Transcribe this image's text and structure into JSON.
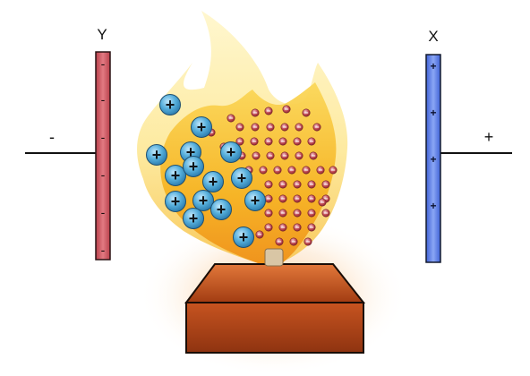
{
  "labels": {
    "plate_y": "Y",
    "plate_x": "X",
    "terminal_y": "-",
    "terminal_x": "+"
  },
  "symbols": {
    "positive_ion": "+",
    "plate_y_mark": "-",
    "plate_x_mark": "+"
  },
  "colors": {
    "plate_y": "#c9545e",
    "plate_x": "#5b7fe6",
    "flame_outer": "#fdf0b0",
    "flame_inner": "#f6b322",
    "burner": "#b84a18",
    "positive_ion": "#3f9fcf",
    "negative_particle": "#b23a42"
  },
  "counts": {
    "positive_ions": 15,
    "negative_particles": 56,
    "plate_y_marks": 6,
    "plate_x_marks": 4
  }
}
